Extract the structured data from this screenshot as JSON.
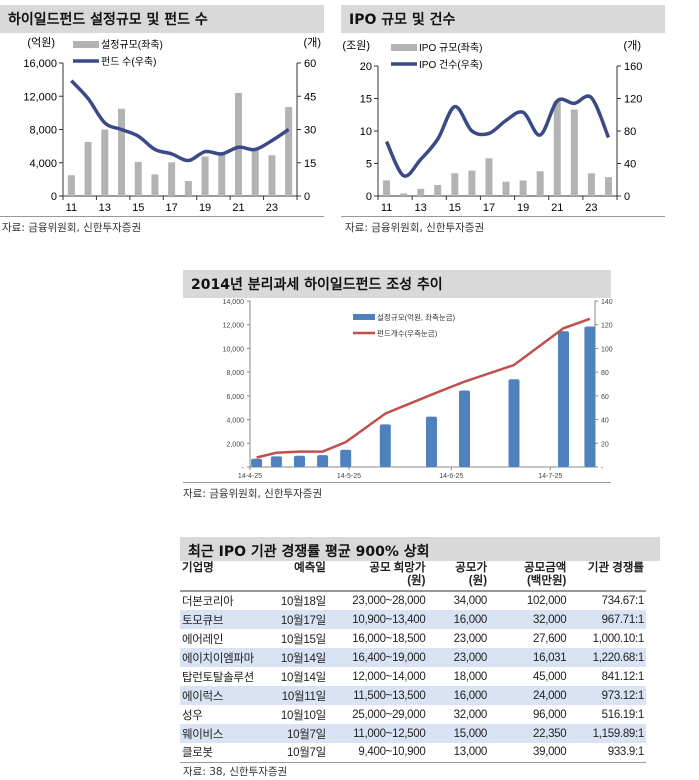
{
  "chart_data": [
    {
      "type": "bar+line",
      "title": "하이일드펀드 설정규모 및 펀드 수",
      "left_unit": "(억원)",
      "right_unit": "(개)",
      "categories": [
        "11",
        "12",
        "13",
        "14",
        "15",
        "16",
        "17",
        "18",
        "19",
        "20",
        "21",
        "22",
        "23",
        "24"
      ],
      "x_tick_labels": [
        "11",
        "13",
        "15",
        "17",
        "19",
        "21",
        "23"
      ],
      "left_ticks": [
        "0",
        "4,000",
        "8,000",
        "12,000",
        "16,000"
      ],
      "right_ticks": [
        "0",
        "15",
        "30",
        "45",
        "60"
      ],
      "ylim_left": [
        0,
        16000
      ],
      "ylim_right": [
        0,
        60
      ],
      "series": [
        {
          "name": "설정규모(좌축)",
          "type": "bar",
          "axis": "left",
          "color": "#b3b3b3",
          "values": [
            2500,
            6500,
            8000,
            10500,
            4100,
            2600,
            4050,
            1800,
            4750,
            5300,
            12400,
            5500,
            4900,
            10700
          ]
        },
        {
          "name": "펀드 수(우축)",
          "type": "line",
          "axis": "right",
          "color": "#3b4a86",
          "values": [
            52,
            44,
            33,
            30,
            27,
            21,
            19,
            16,
            20,
            19,
            22,
            21,
            25,
            30
          ]
        }
      ],
      "source": "자료: 금융위원회, 신한투자증권"
    },
    {
      "type": "bar+line",
      "title": "IPO 규모 및 건수",
      "left_unit": "(조원)",
      "right_unit": "(개)",
      "categories": [
        "11",
        "12",
        "13",
        "14",
        "15",
        "16",
        "17",
        "18",
        "19",
        "20",
        "21",
        "22",
        "23",
        "24"
      ],
      "x_tick_labels": [
        "11",
        "13",
        "15",
        "17",
        "19",
        "21",
        "23"
      ],
      "left_ticks": [
        "0",
        "5",
        "10",
        "15",
        "20"
      ],
      "right_ticks": [
        "0",
        "40",
        "80",
        "120",
        "160"
      ],
      "ylim_left": [
        0,
        20
      ],
      "ylim_right": [
        0,
        160
      ],
      "series": [
        {
          "name": "IPO 규모(좌축)",
          "type": "bar",
          "axis": "left",
          "color": "#b3b3b3",
          "values": [
            2.4,
            0.4,
            1.1,
            1.7,
            3.5,
            3.9,
            5.8,
            2.2,
            2.4,
            3.8,
            14.6,
            13.3,
            3.5,
            2.9
          ]
        },
        {
          "name": "IPO 건수(우축)",
          "type": "line",
          "axis": "right",
          "color": "#3b4a86",
          "values": [
            67,
            25,
            45,
            70,
            110,
            80,
            77,
            93,
            103,
            75,
            117,
            114,
            121,
            72
          ]
        }
      ],
      "source": "자료: 금융위원회, 신한투자증권"
    },
    {
      "type": "bar+line",
      "title": "2014년 분리과세 하이일드펀드 조성 추이",
      "x": [
        "2014-04-27",
        "2014-05-03",
        "2014-05-10",
        "2014-05-17",
        "2014-05-24",
        "2014-06-05",
        "2014-06-19",
        "2014-06-29",
        "2014-07-14",
        "2014-07-29",
        "2014-08-06"
      ],
      "x_tick_labels": [
        "14-4-25",
        "14-5-25",
        "14-6-25",
        "14-7-25"
      ],
      "left_ticks": [
        "-",
        "2,000",
        "4,000",
        "6,000",
        "8,000",
        "10,000",
        "12,000",
        "14,000"
      ],
      "right_ticks": [
        "-",
        "20",
        "40",
        "60",
        "80",
        "100",
        "120",
        "140"
      ],
      "ylim_left": [
        0,
        14000
      ],
      "ylim_right": [
        0,
        140
      ],
      "series": [
        {
          "name": "설정규모(억원, 좌축눈금)",
          "type": "bar",
          "axis": "left",
          "color": "#4f81bd",
          "values": [
            700,
            900,
            950,
            1000,
            1450,
            3600,
            4250,
            6450,
            7400,
            11450,
            11850
          ]
        },
        {
          "name": "펀드개수(우축눈금)",
          "type": "line",
          "axis": "right",
          "color": "#c0504d",
          "values": [
            8,
            12,
            13,
            13,
            21,
            45,
            61,
            72,
            86,
            117,
            125
          ]
        }
      ],
      "source": "자료: 금융위원회, 신한투자증권"
    }
  ],
  "table": {
    "title": "최근 IPO 기관 경쟁률 평균 900% 상회",
    "headers": [
      "기업명",
      "예측일",
      "공모 희망가 (원)",
      "공모가 (원)",
      "공모금액 (백만원)",
      "기관 경쟁률"
    ],
    "rows": [
      [
        "더본코리아",
        "10월18일",
        "23,000~28,000",
        "34,000",
        "102,000",
        "734.67:1"
      ],
      [
        "토모큐브",
        "10월17일",
        "10,900~13,400",
        "16,000",
        "32,000",
        "967.71:1"
      ],
      [
        "에어레인",
        "10월15일",
        "16,000~18,500",
        "23,000",
        "27,600",
        "1,000.10:1"
      ],
      [
        "에이치이엠파마",
        "10월14일",
        "16,400~19,000",
        "23,000",
        "16,031",
        "1,220.68:1"
      ],
      [
        "탑런토탈솔루션",
        "10월14일",
        "12,000~14,000",
        "18,000",
        "45,000",
        "841.12:1"
      ],
      [
        "에이럭스",
        "10월11일",
        "11,500~13,500",
        "16,000",
        "24,000",
        "973.12:1"
      ],
      [
        "성우",
        "10월10일",
        "25,000~29,000",
        "32,000",
        "96,000",
        "516.19:1"
      ],
      [
        "웨이비스",
        "10월7일",
        "11,000~12,500",
        "15,000",
        "22,350",
        "1,159.89:1"
      ],
      [
        "클로봇",
        "10월7일",
        "9,400~10,900",
        "13,000",
        "39,000",
        "933.9:1"
      ]
    ],
    "source": "자료: 38, 신한투자증권"
  }
}
